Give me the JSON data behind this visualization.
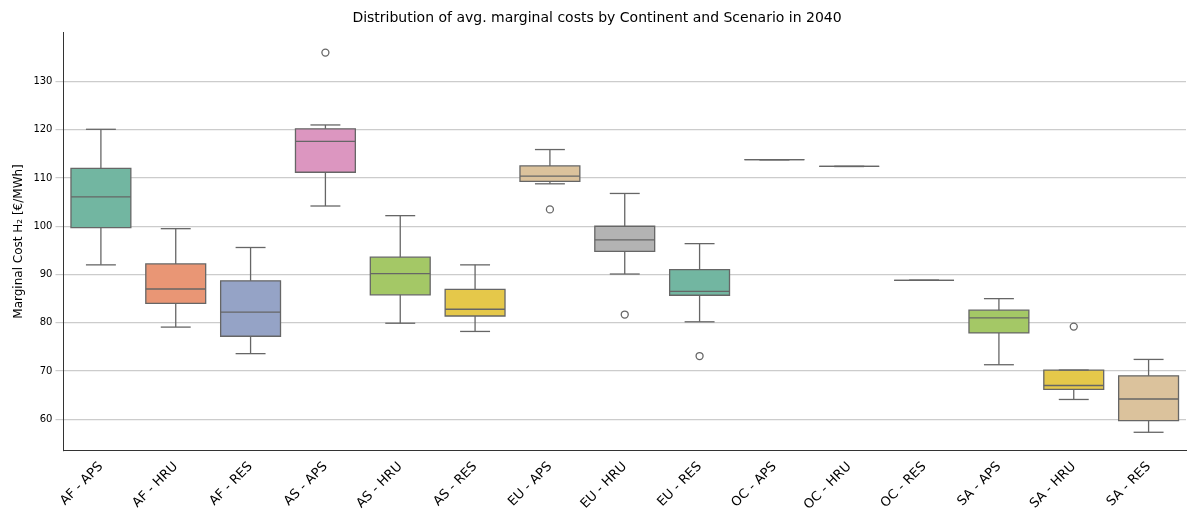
{
  "chart_data": {
    "type": "box",
    "title": "Distribution of avg. marginal costs by Continent and Scenario in 2040",
    "ylabel": "Marginal Cost H₂ [€/MWh]",
    "categories": [
      "AF - APS",
      "AF - HRU",
      "AF - RES",
      "AS - APS",
      "AS - HRU",
      "AS - RES",
      "EU - APS",
      "EU - HRU",
      "EU - RES",
      "OC - APS",
      "OC - HRU",
      "OC - RES",
      "SA - APS",
      "SA - HRU",
      "SA - RES"
    ],
    "colors": [
      "#72b6a1",
      "#e99675",
      "#95a3c6",
      "#dc96c0",
      "#a4c866",
      "#e5c84a",
      "#dbc29c",
      "#b3b3b3",
      "#72b6a1",
      "#666666",
      "#666666",
      "#666666",
      "#a4c866",
      "#e5c84a",
      "#dbc29c"
    ],
    "boxes": [
      {
        "low": 92,
        "q1": 99.7,
        "median": 106.1,
        "q3": 112,
        "high": 120.1
      },
      {
        "low": 79.1,
        "q1": 84,
        "median": 87,
        "q3": 92.2,
        "high": 99.5
      },
      {
        "low": 73.6,
        "q1": 77.2,
        "median": 82.2,
        "q3": 88.7,
        "high": 95.6
      },
      {
        "low": 104.2,
        "q1": 111.2,
        "median": 117.6,
        "q3": 120.2,
        "high": 121,
        "outliers": [
          136
        ]
      },
      {
        "low": 79.9,
        "q1": 85.8,
        "median": 90.2,
        "q3": 93.6,
        "high": 102.2
      },
      {
        "low": 78.2,
        "q1": 81.4,
        "median": 82.8,
        "q3": 86.9,
        "high": 92
      },
      {
        "low": 108.8,
        "q1": 109.3,
        "median": 110.4,
        "q3": 112.5,
        "high": 115.9,
        "outliers": [
          103.5
        ]
      },
      {
        "low": 90.1,
        "q1": 94.8,
        "median": 97.2,
        "q3": 100,
        "high": 106.8,
        "outliers": [
          81.7
        ]
      },
      {
        "low": 80.2,
        "q1": 85.7,
        "median": 86.5,
        "q3": 91,
        "high": 96.4,
        "outliers": [
          73.1
        ]
      },
      {
        "low": 113.8,
        "q1": 113.8,
        "median": 113.8,
        "q3": 113.8,
        "high": 113.8
      },
      {
        "low": 112.4,
        "q1": 112.4,
        "median": 112.4,
        "q3": 112.4,
        "high": 112.4
      },
      {
        "low": 88.8,
        "q1": 88.8,
        "median": 88.8,
        "q3": 88.8,
        "high": 88.8
      },
      {
        "low": 71.3,
        "q1": 77.9,
        "median": 81,
        "q3": 82.6,
        "high": 85
      },
      {
        "low": 64.1,
        "q1": 66.2,
        "median": 67,
        "q3": 70.2,
        "high": 70.2,
        "outliers": [
          79.2
        ]
      },
      {
        "low": 57.3,
        "q1": 59.7,
        "median": 64.2,
        "q3": 69,
        "high": 72.4
      }
    ],
    "ylim": [
      53.6,
      140.1
    ],
    "yticks": [
      60,
      70,
      80,
      90,
      100,
      110,
      120,
      130
    ],
    "grid": "y",
    "legend": false
  }
}
